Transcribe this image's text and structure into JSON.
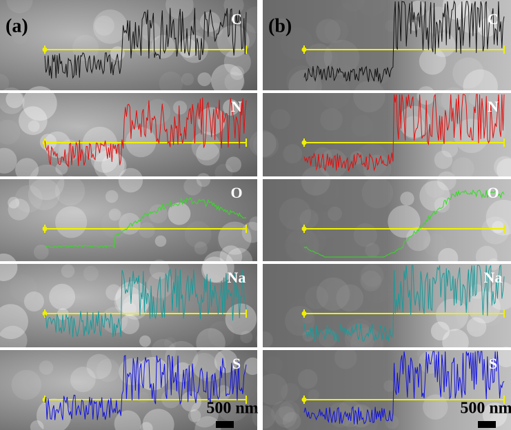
{
  "panels": [
    {
      "label": "(a)",
      "rows": [
        {
          "element": "C"
        },
        {
          "element": "N"
        },
        {
          "element": "O"
        },
        {
          "element": "Na"
        },
        {
          "element": "S"
        }
      ],
      "scale_bar": "500 nm"
    },
    {
      "label": "(b)",
      "rows": [
        {
          "element": "C"
        },
        {
          "element": "N"
        },
        {
          "element": "O"
        },
        {
          "element": "Na"
        },
        {
          "element": "S"
        }
      ],
      "scale_bar": "500 nm"
    }
  ]
}
